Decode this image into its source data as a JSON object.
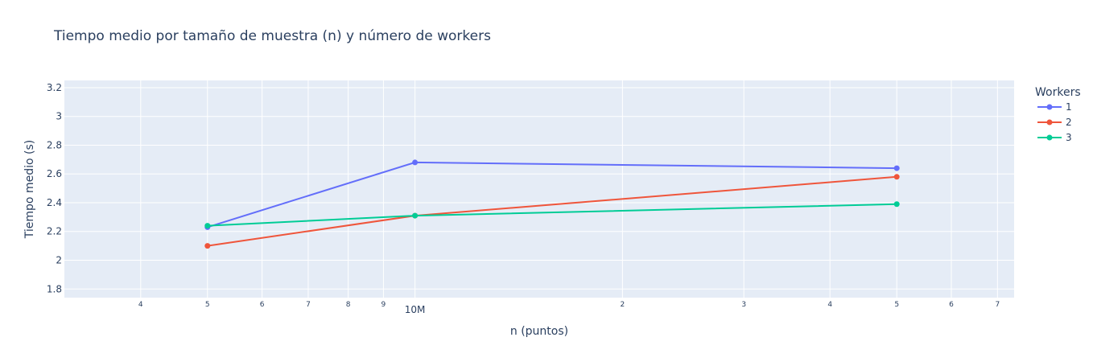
{
  "chart_data": {
    "type": "line",
    "title": "Tiempo medio por tamaño de muestra (n) y número de workers",
    "xlabel": "n (puntos)",
    "ylabel": "Tiempo medio (s)",
    "x_scale": "log",
    "x": [
      5000000,
      10000000,
      50000000
    ],
    "xlim": [
      3100000,
      74000000
    ],
    "ylim": [
      1.74,
      3.25
    ],
    "grid": true,
    "yticks": [
      {
        "value": 1.8,
        "label": "1.8"
      },
      {
        "value": 2.0,
        "label": "2"
      },
      {
        "value": 2.2,
        "label": "2.2"
      },
      {
        "value": 2.4,
        "label": "2.4"
      },
      {
        "value": 2.6,
        "label": "2.6"
      },
      {
        "value": 2.8,
        "label": "2.8"
      },
      {
        "value": 3.0,
        "label": "3"
      },
      {
        "value": 3.2,
        "label": "3.2"
      }
    ],
    "xticks": [
      {
        "value": 4000000,
        "label": "4",
        "major": false
      },
      {
        "value": 5000000,
        "label": "5",
        "major": false
      },
      {
        "value": 6000000,
        "label": "6",
        "major": false
      },
      {
        "value": 7000000,
        "label": "7",
        "major": false
      },
      {
        "value": 8000000,
        "label": "8",
        "major": false
      },
      {
        "value": 9000000,
        "label": "9",
        "major": false
      },
      {
        "value": 10000000,
        "label": "10M",
        "major": true
      },
      {
        "value": 20000000,
        "label": "2",
        "major": false
      },
      {
        "value": 30000000,
        "label": "3",
        "major": false
      },
      {
        "value": 40000000,
        "label": "4",
        "major": false
      },
      {
        "value": 50000000,
        "label": "5",
        "major": false
      },
      {
        "value": 60000000,
        "label": "6",
        "major": false
      },
      {
        "value": 70000000,
        "label": "7",
        "major": false
      }
    ],
    "legend": {
      "title": "Workers",
      "placement": "right"
    },
    "series": [
      {
        "name": "1",
        "color": "#636efa",
        "values": [
          2.23,
          2.68,
          2.64
        ]
      },
      {
        "name": "2",
        "color": "#ef553b",
        "values": [
          2.1,
          2.31,
          2.58
        ]
      },
      {
        "name": "3",
        "color": "#00cc96",
        "values": [
          2.24,
          2.31,
          2.39
        ]
      }
    ]
  }
}
